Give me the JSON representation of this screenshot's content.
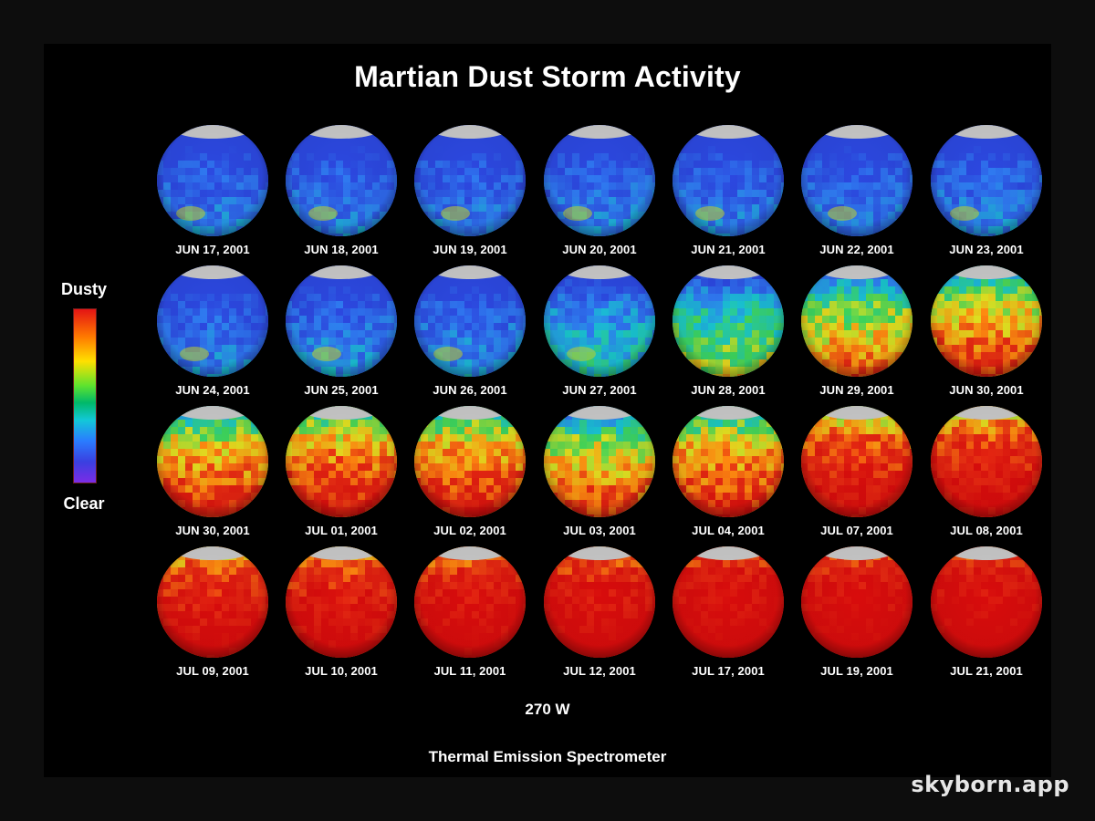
{
  "title": "Martian Dust Storm Activity",
  "legend": {
    "top_label": "Dusty",
    "bottom_label": "Clear"
  },
  "colors": {
    "clear": "#2a4ee8",
    "dusty": "#e01212",
    "polar_cap": "#c9c9c9",
    "background": "#000000"
  },
  "longitude_label": "270 W",
  "instrument": "Thermal Emission Spectrometer",
  "watermark": "skyborn.app",
  "globes": [
    {
      "date": "JUN 17, 2001",
      "dust_level": 0.05
    },
    {
      "date": "JUN 18, 2001",
      "dust_level": 0.05
    },
    {
      "date": "JUN 19, 2001",
      "dust_level": 0.04
    },
    {
      "date": "JUN 20, 2001",
      "dust_level": 0.06
    },
    {
      "date": "JUN 21, 2001",
      "dust_level": 0.05
    },
    {
      "date": "JUN 22, 2001",
      "dust_level": 0.05
    },
    {
      "date": "JUN 23, 2001",
      "dust_level": 0.06
    },
    {
      "date": "JUN 24, 2001",
      "dust_level": 0.06
    },
    {
      "date": "JUN 25, 2001",
      "dust_level": 0.08
    },
    {
      "date": "JUN 26, 2001",
      "dust_level": 0.08
    },
    {
      "date": "JUN 27, 2001",
      "dust_level": 0.18
    },
    {
      "date": "JUN 28, 2001",
      "dust_level": 0.32
    },
    {
      "date": "JUN 29, 2001",
      "dust_level": 0.48
    },
    {
      "date": "JUN 30, 2001",
      "dust_level": 0.58
    },
    {
      "date": "JUN 30, 2001",
      "dust_level": 0.62
    },
    {
      "date": "JUL 01, 2001",
      "dust_level": 0.68
    },
    {
      "date": "JUL 02, 2001",
      "dust_level": 0.66
    },
    {
      "date": "JUL 03, 2001",
      "dust_level": 0.55
    },
    {
      "date": "JUL 04, 2001",
      "dust_level": 0.64
    },
    {
      "date": "JUL 07, 2001",
      "dust_level": 0.8
    },
    {
      "date": "JUL 08, 2001",
      "dust_level": 0.84
    },
    {
      "date": "JUL 09, 2001",
      "dust_level": 0.86
    },
    {
      "date": "JUL 10, 2001",
      "dust_level": 0.88
    },
    {
      "date": "JUL 11, 2001",
      "dust_level": 0.92
    },
    {
      "date": "JUL 12, 2001",
      "dust_level": 0.93
    },
    {
      "date": "JUL 17, 2001",
      "dust_level": 0.97
    },
    {
      "date": "JUL 19, 2001",
      "dust_level": 0.97
    },
    {
      "date": "JUL 21, 2001",
      "dust_level": 0.98
    }
  ]
}
